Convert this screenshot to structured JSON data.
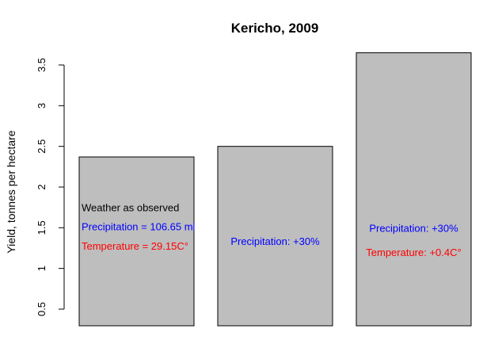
{
  "chart_data": {
    "type": "bar",
    "title": "Kericho, 2009",
    "xlabel": "",
    "ylabel": "Yield, tonnes per hectare",
    "ylim": [
      0.3,
      3.7
    ],
    "yticks": [
      0.5,
      1,
      1.5,
      2,
      2.5,
      3,
      3.5
    ],
    "ytick_labels": [
      "0.5",
      "1",
      "1.5",
      "2",
      "2.5",
      "3",
      "3.5"
    ],
    "values": [
      2.37,
      2.5,
      3.65
    ],
    "bar_color": "#bebebe",
    "grid": false,
    "annotations": [
      [
        {
          "text": "Weather as observed",
          "color": "#000000",
          "y": 1.75
        },
        {
          "text": "Precipitation = 106.65 ml",
          "color": "#0000ff",
          "y": 1.52
        },
        {
          "text": "Temperature = 29.15C°",
          "color": "#ff0000",
          "y": 1.28
        }
      ],
      [
        {
          "text": "Precipitation: +30%",
          "color": "#0000ff",
          "y": 1.34
        }
      ],
      [
        {
          "text": "Precipitation: +30%",
          "color": "#0000ff",
          "y": 1.5
        },
        {
          "text": "Temperature: +0.4C°",
          "color": "#ff0000",
          "y": 1.2
        }
      ]
    ]
  }
}
